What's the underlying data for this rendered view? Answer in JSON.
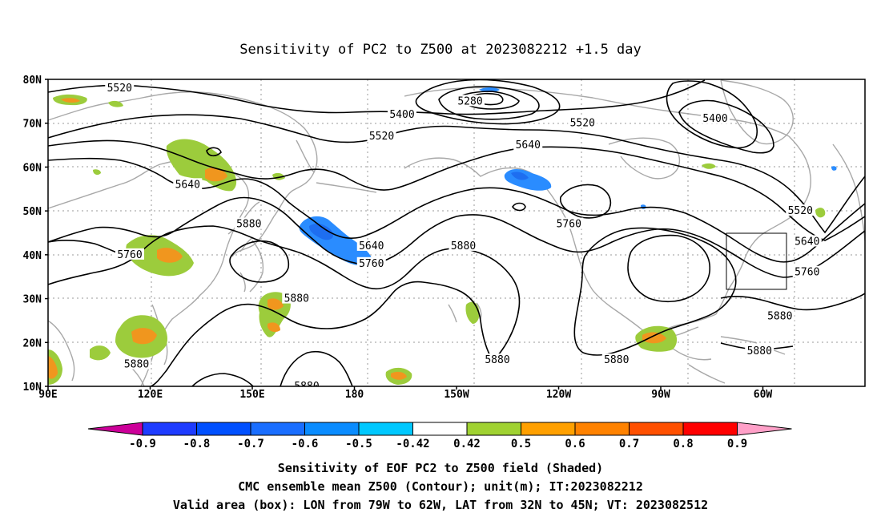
{
  "title": "Sensitivity of PC2 to Z500 at 2023082212 +1.5 day",
  "map": {
    "lon_labels": [
      "90E",
      "120E",
      "150E",
      "180",
      "150W",
      "120W",
      "90W",
      "60W"
    ],
    "lat_labels": [
      "80N",
      "70N",
      "60N",
      "50N",
      "40N",
      "30N",
      "20N",
      "10N"
    ],
    "lon_range": [
      90,
      330
    ],
    "lat_range": [
      10,
      80
    ],
    "lon_ticks": [
      90,
      120,
      150,
      180,
      210,
      240,
      270,
      300
    ],
    "lat_ticks": [
      80,
      70,
      60,
      50,
      40,
      30,
      20,
      10
    ],
    "contour_labels": [
      {
        "text": "5520",
        "lon": 111,
        "lat": 78
      },
      {
        "text": "5400",
        "lon": 194,
        "lat": 72
      },
      {
        "text": "5280",
        "lon": 214,
        "lat": 75
      },
      {
        "text": "5520",
        "lon": 188,
        "lat": 67
      },
      {
        "text": "5520",
        "lon": 247,
        "lat": 70
      },
      {
        "text": "5400",
        "lon": 286,
        "lat": 71
      },
      {
        "text": "5640",
        "lon": 231,
        "lat": 65
      },
      {
        "text": "5640",
        "lon": 131,
        "lat": 56
      },
      {
        "text": "5880",
        "lon": 149,
        "lat": 47
      },
      {
        "text": "5640",
        "lon": 185,
        "lat": 42
      },
      {
        "text": "5760",
        "lon": 185,
        "lat": 38
      },
      {
        "text": "5880",
        "lon": 212,
        "lat": 42
      },
      {
        "text": "5760",
        "lon": 243,
        "lat": 47
      },
      {
        "text": "5520",
        "lon": 311,
        "lat": 50
      },
      {
        "text": "5640",
        "lon": 313,
        "lat": 43
      },
      {
        "text": "5760",
        "lon": 313,
        "lat": 36
      },
      {
        "text": "5760",
        "lon": 114,
        "lat": 40
      },
      {
        "text": "5880",
        "lon": 163,
        "lat": 30
      },
      {
        "text": "5880",
        "lon": 116,
        "lat": 15
      },
      {
        "text": "5880",
        "lon": 222,
        "lat": 16
      },
      {
        "text": "5880",
        "lon": 257,
        "lat": 16
      },
      {
        "text": "5880",
        "lon": 305,
        "lat": 26
      },
      {
        "text": "5880",
        "lon": 299,
        "lat": 18
      },
      {
        "text": "5880",
        "lon": 166,
        "lat": 10
      }
    ],
    "valid_box": {
      "lon_min": 281,
      "lon_max": 298,
      "lat_min": 32,
      "lat_max": 45
    }
  },
  "colorbar": {
    "labels": [
      "-0.9",
      "-0.8",
      "-0.7",
      "-0.6",
      "-0.5",
      "-0.42",
      "0.42",
      "0.5",
      "0.6",
      "0.7",
      "0.8",
      "0.9"
    ],
    "colors": [
      "#a000c8",
      "#1e3cff",
      "#0050ff",
      "#1a6eff",
      "#0a8cff",
      "#00c8ff",
      "#ffffff",
      "#a0d232",
      "#ffa000",
      "#ff8200",
      "#ff5000",
      "#ff0000",
      "#ff96c8"
    ],
    "low_color": "#cc0099",
    "high_color": "#ffa0c8"
  },
  "caption": {
    "line1": "Sensitivity of EOF PC2 to Z500 field (Shaded)",
    "line2": "CMC ensemble mean Z500 (Contour); unit(m); IT:2023082212",
    "line3": "Valid area (box): LON from 79W to 62W, LAT from 32N to 45N; VT: 2023082512"
  },
  "shading": {
    "positive_color": "#9ccc3c",
    "positive_core_color": "#f0961e",
    "positive_peak_color": "#e8502a",
    "negative_color": "#2a8cff",
    "negative_core_color": "#1e6ef0"
  }
}
